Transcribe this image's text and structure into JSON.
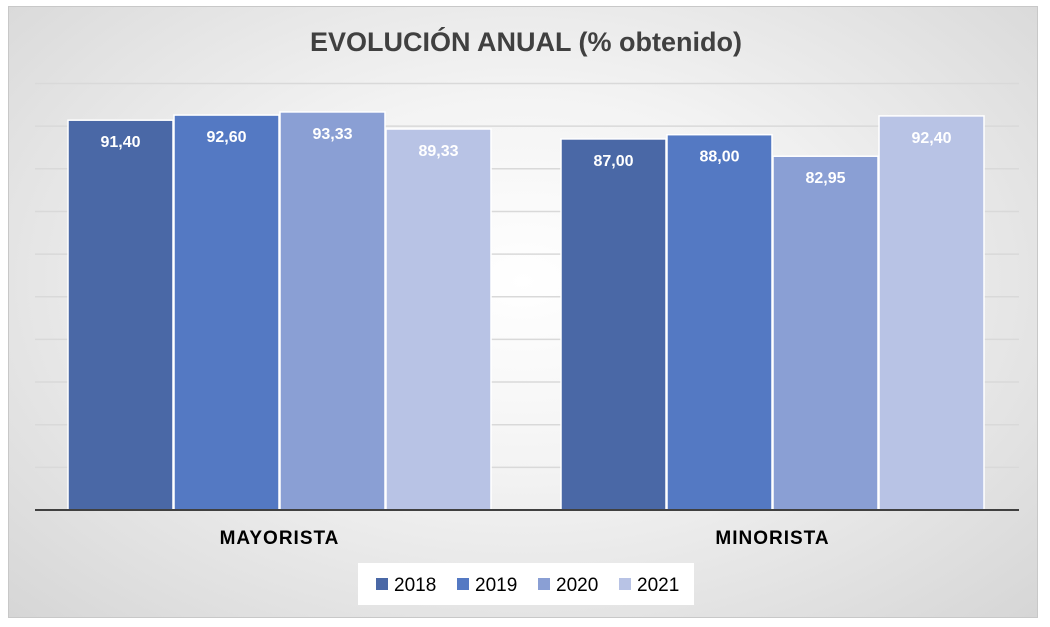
{
  "chart_data": {
    "type": "bar",
    "title": "EVOLUCIÓN ANUAL (% obtenido)",
    "categories": [
      "MAYORISTA",
      "MINORISTA"
    ],
    "series": [
      {
        "name": "2018",
        "values": [
          91.4,
          87.0
        ],
        "labels": [
          "91,40",
          "87,00"
        ],
        "color": "#4a68a6"
      },
      {
        "name": "2019",
        "values": [
          92.6,
          88.0
        ],
        "labels": [
          "92,60",
          "88,00"
        ],
        "color": "#5479c3"
      },
      {
        "name": "2020",
        "values": [
          93.33,
          82.95
        ],
        "labels": [
          "93,33",
          "82,95"
        ],
        "color": "#8a9fd4"
      },
      {
        "name": "2021",
        "values": [
          89.33,
          92.4
        ],
        "labels": [
          "89,33",
          "92,40"
        ],
        "color": "#b8c3e5"
      }
    ],
    "ylim": [
      0,
      100
    ],
    "y_tick_step": 10,
    "y_tick_labels_visible": false,
    "grid": true,
    "legend_position": "bottom",
    "data_labels": "inside-top"
  }
}
